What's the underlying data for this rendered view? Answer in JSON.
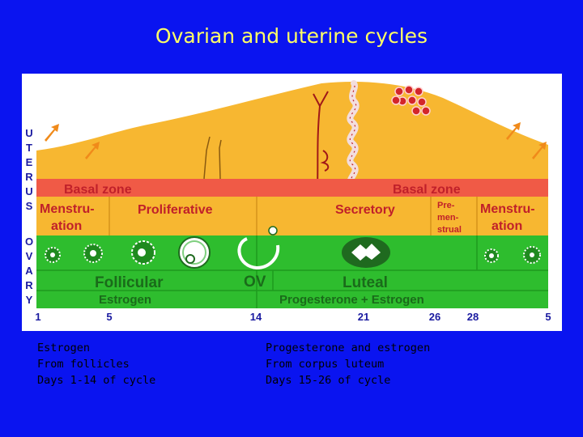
{
  "title": "Ovarian and uterine cycles",
  "colors": {
    "background": "#0a14f0",
    "title": "#ffff66",
    "endometrium": "#f7b731",
    "basal_zone": "#f05a46",
    "ovary_band": "#2ebd2e",
    "zone_text": "#c0202a",
    "label_text": "#1a6b1a",
    "arrow": "#f08a1a",
    "blood": "#c0202a",
    "axis_text": "#1a1aa0"
  },
  "diagram": {
    "side_labels": {
      "uterus": [
        "U",
        "T",
        "E",
        "R",
        "U",
        "S"
      ],
      "ovary": [
        "O",
        "V",
        "A",
        "R",
        "Y"
      ]
    },
    "uterus": {
      "basal_zone_left": "Basal zone",
      "basal_zone_right": "Basal zone",
      "menstruation_left": [
        "Menstru-",
        "ation"
      ],
      "proliferative": "Proliferative",
      "secretory": "Secretory",
      "premenstrual": [
        "Pre-",
        "men-",
        "strual"
      ],
      "menstruation_right": [
        "Menstru-",
        "ation"
      ]
    },
    "ovary": {
      "follicular": "Follicular",
      "ov": "OV",
      "luteal": "Luteal",
      "estrogen": "Estrogen",
      "progesterone_estrogen": "Progesterone + Estrogen"
    },
    "day_ticks": [
      "1",
      "5",
      "14",
      "21",
      "26",
      "28",
      "5"
    ]
  },
  "notes": {
    "left": [
      "Estrogen",
      "From follicles",
      "Days 1-14 of cycle"
    ],
    "right": [
      "Progesterone and estrogen",
      "From corpus luteum",
      "Days 15-26 of cycle"
    ]
  }
}
